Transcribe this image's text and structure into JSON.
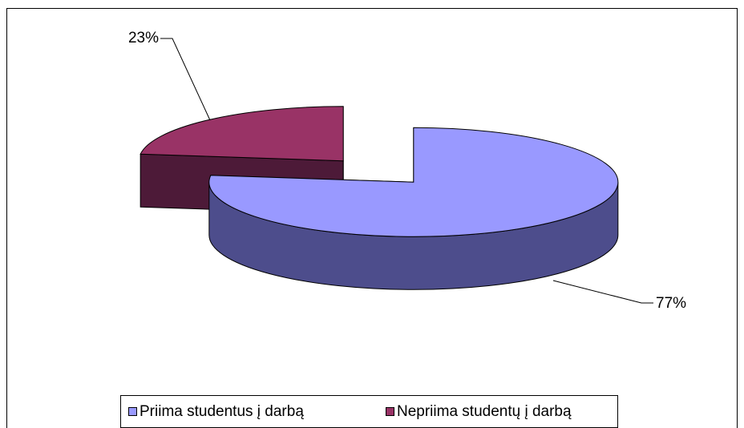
{
  "chart_data": {
    "type": "pie",
    "categories": [
      "Priima studentus į darbą",
      "Nepriima studentų į darbą"
    ],
    "values": [
      77,
      23
    ],
    "value_labels": [
      "77%",
      "23%"
    ],
    "colors": [
      "#9999ff",
      "#993366"
    ],
    "legend": "bottom"
  }
}
